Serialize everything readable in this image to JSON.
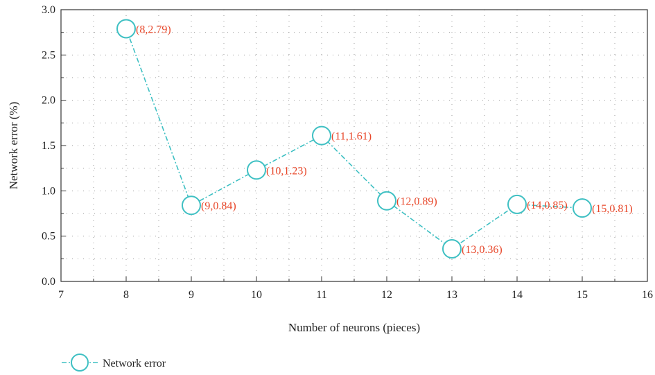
{
  "chart_data": {
    "type": "line",
    "title": "",
    "xlabel": "Number of neurons (pieces)",
    "ylabel": "Network error (%)",
    "xlim": [
      7,
      16
    ],
    "ylim": [
      0.0,
      3.0
    ],
    "x_ticks": [
      "7",
      "8",
      "9",
      "10",
      "11",
      "12",
      "13",
      "14",
      "15",
      "16"
    ],
    "y_ticks": [
      "0.0",
      "0.5",
      "1.0",
      "1.5",
      "2.0",
      "2.5",
      "3.0"
    ],
    "grid": true,
    "legend_position": "bottom-left",
    "series": [
      {
        "name": "Network error",
        "color": "#3fc0c3",
        "marker": "open-circle",
        "line_style": "dash-dot",
        "x": [
          8,
          9,
          10,
          11,
          12,
          13,
          14,
          15
        ],
        "y": [
          2.79,
          0.84,
          1.23,
          1.61,
          0.89,
          0.36,
          0.85,
          0.81
        ],
        "point_labels": [
          "(8,2.79)",
          "(9,0.84)",
          "(10,1.23)",
          "(11,1.61)",
          "(12,0.89)",
          "(13,0.36)",
          "(14,0.85)",
          "(15,0.81)"
        ]
      }
    ],
    "label_color": "#e8472a"
  }
}
